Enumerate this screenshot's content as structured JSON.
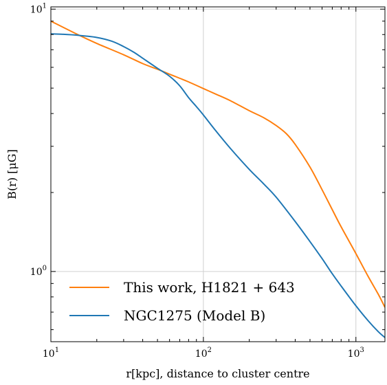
{
  "chart_data": {
    "type": "line",
    "xlabel": "r[kpc], distance to cluster centre",
    "ylabel": "B(r) [μG]",
    "xscale": "log",
    "yscale": "log",
    "xlim": [
      10,
      1550
    ],
    "ylim": [
      0.54,
      10.2
    ],
    "grid": true,
    "legend_position": "lower-left",
    "x_ticks": [
      {
        "value": 10,
        "base": "10",
        "exp": "1"
      },
      {
        "value": 100,
        "base": "10",
        "exp": "2"
      },
      {
        "value": 1000,
        "base": "10",
        "exp": "3"
      }
    ],
    "y_ticks": [
      {
        "value": 1,
        "base": "10",
        "exp": "0"
      },
      {
        "value": 10,
        "base": "10",
        "exp": "1"
      }
    ],
    "series": [
      {
        "name": "This work,  H1821 + 643",
        "color": "#ff7f0e",
        "x": [
          10,
          15,
          20,
          30,
          40,
          50,
          60,
          70,
          80,
          100,
          120,
          150,
          200,
          250,
          300,
          350,
          400,
          500,
          600,
          700,
          800,
          1000,
          1200,
          1400,
          1550
        ],
        "y": [
          9.0,
          8.0,
          7.4,
          6.7,
          6.2,
          5.9,
          5.65,
          5.45,
          5.28,
          4.98,
          4.75,
          4.48,
          4.1,
          3.85,
          3.6,
          3.35,
          3.05,
          2.5,
          2.05,
          1.72,
          1.48,
          1.17,
          0.96,
          0.82,
          0.73
        ]
      },
      {
        "name": "NGC1275 (Model B)",
        "color": "#1f77b4",
        "x": [
          10,
          12,
          15,
          20,
          25,
          30,
          35,
          40,
          50,
          60,
          70,
          80,
          90,
          100,
          120,
          150,
          200,
          250,
          300,
          400,
          500,
          600,
          700,
          800,
          1000,
          1200,
          1400,
          1550
        ],
        "y": [
          8.05,
          8.02,
          7.95,
          7.8,
          7.55,
          7.2,
          6.85,
          6.5,
          5.95,
          5.55,
          5.1,
          4.6,
          4.25,
          3.95,
          3.45,
          2.95,
          2.45,
          2.15,
          1.92,
          1.55,
          1.3,
          1.12,
          0.98,
          0.88,
          0.74,
          0.65,
          0.59,
          0.56
        ]
      }
    ]
  }
}
